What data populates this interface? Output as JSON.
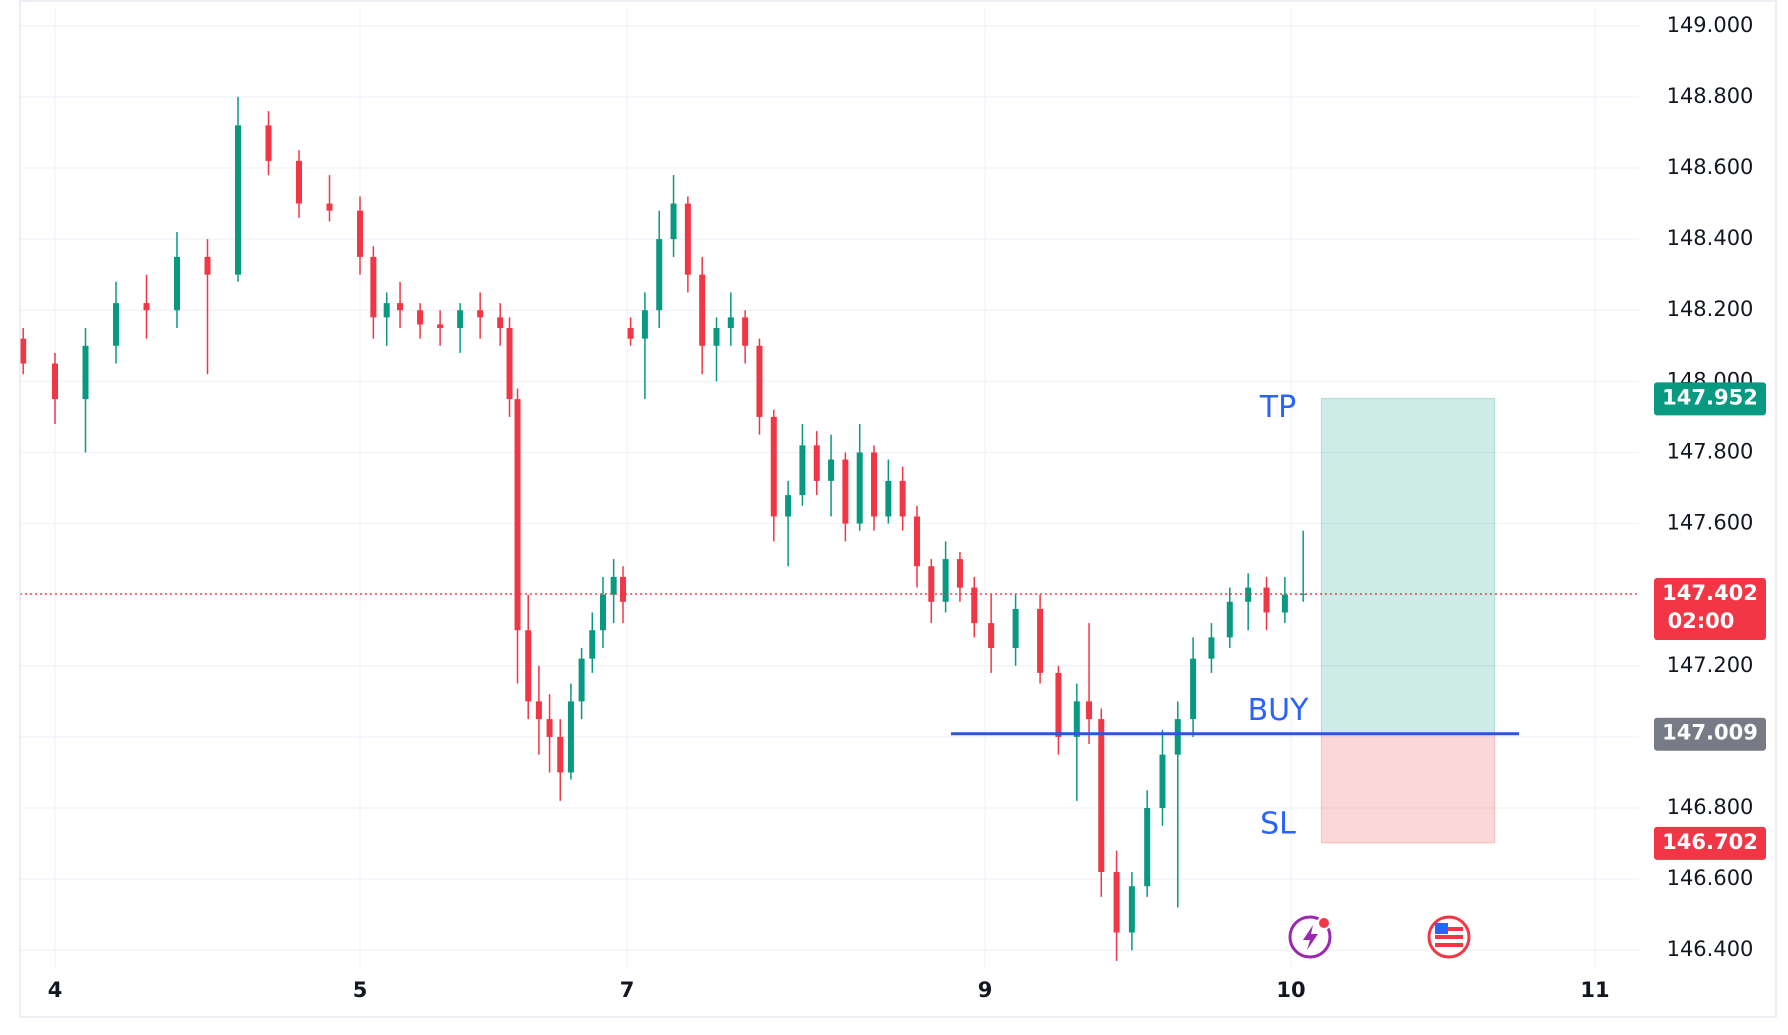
{
  "chart_data": {
    "type": "candlestick",
    "x": [
      3.9,
      4.0,
      4.1,
      4.2,
      4.3,
      4.4,
      4.5,
      4.6,
      4.7,
      4.8,
      4.9,
      5.0,
      5.1,
      5.2,
      5.3,
      5.45,
      5.6,
      5.75,
      5.9,
      6.05,
      6.12,
      6.18,
      6.26,
      6.34,
      6.42,
      6.5,
      6.58,
      6.66,
      6.74,
      6.82,
      6.9,
      6.97,
      7.02,
      7.1,
      7.18,
      7.26,
      7.34,
      7.42,
      7.5,
      7.58,
      7.66,
      7.74,
      7.82,
      7.9,
      7.98,
      8.06,
      8.14,
      8.22,
      8.3,
      8.38,
      8.46,
      8.54,
      8.62,
      8.7,
      8.78,
      8.86,
      8.94,
      9.02,
      9.1,
      9.18,
      9.24,
      9.3,
      9.34,
      9.38,
      9.43,
      9.48,
      9.53,
      9.58,
      9.63,
      9.68,
      9.74,
      9.8,
      9.86,
      9.92,
      9.98,
      10.04
    ],
    "open": [
      148.12,
      148.05,
      147.95,
      148.1,
      148.22,
      148.2,
      148.35,
      148.3,
      148.72,
      148.62,
      148.5,
      148.48,
      148.35,
      148.18,
      148.22,
      148.2,
      148.16,
      148.15,
      148.2,
      148.18,
      148.15,
      147.95,
      147.3,
      147.1,
      147.05,
      147.0,
      146.9,
      147.1,
      147.22,
      147.3,
      147.4,
      147.45,
      148.15,
      148.12,
      148.2,
      148.4,
      148.5,
      148.3,
      148.1,
      148.15,
      148.18,
      148.1,
      147.9,
      147.62,
      147.68,
      147.82,
      147.72,
      147.78,
      147.6,
      147.8,
      147.62,
      147.72,
      147.62,
      147.48,
      147.38,
      147.5,
      147.42,
      147.32,
      147.25,
      147.36,
      147.18,
      147.0,
      147.1,
      147.05,
      146.62,
      146.45,
      146.58,
      146.8,
      146.95,
      147.05,
      147.22,
      147.28,
      147.38,
      147.42,
      147.35,
      147.4
    ],
    "high": [
      148.15,
      148.08,
      148.15,
      148.28,
      148.3,
      148.42,
      148.4,
      148.8,
      148.76,
      148.65,
      148.58,
      148.52,
      148.38,
      148.25,
      148.28,
      148.22,
      148.2,
      148.22,
      148.25,
      148.22,
      148.18,
      147.98,
      147.4,
      147.2,
      147.12,
      147.05,
      147.15,
      147.25,
      147.35,
      147.45,
      147.5,
      147.48,
      148.18,
      148.25,
      148.48,
      148.58,
      148.52,
      148.35,
      148.18,
      148.25,
      148.2,
      148.12,
      147.92,
      147.72,
      147.88,
      147.86,
      147.85,
      147.8,
      147.88,
      147.82,
      147.78,
      147.76,
      147.65,
      147.5,
      147.55,
      147.52,
      147.45,
      147.4,
      147.4,
      147.4,
      147.2,
      147.15,
      147.32,
      147.08,
      146.68,
      146.62,
      146.85,
      147.02,
      147.1,
      147.28,
      147.32,
      147.42,
      147.46,
      147.45,
      147.45,
      147.58
    ],
    "low": [
      148.02,
      147.88,
      147.8,
      148.05,
      148.12,
      148.15,
      148.02,
      148.28,
      148.58,
      148.46,
      148.45,
      148.3,
      148.12,
      148.1,
      148.15,
      148.12,
      148.1,
      148.08,
      148.12,
      148.1,
      147.9,
      147.15,
      147.05,
      146.95,
      146.9,
      146.82,
      146.88,
      147.05,
      147.18,
      147.25,
      147.32,
      147.32,
      148.1,
      147.95,
      148.15,
      148.35,
      148.25,
      148.02,
      148.0,
      148.1,
      148.05,
      147.85,
      147.55,
      147.48,
      147.65,
      147.68,
      147.62,
      147.55,
      147.58,
      147.58,
      147.6,
      147.58,
      147.42,
      147.32,
      147.35,
      147.38,
      147.28,
      147.18,
      147.2,
      147.15,
      146.95,
      146.82,
      146.98,
      146.55,
      146.37,
      146.4,
      146.55,
      146.75,
      146.52,
      147.0,
      147.18,
      147.25,
      147.3,
      147.3,
      147.32,
      147.38
    ],
    "close": [
      148.05,
      147.95,
      148.1,
      148.22,
      148.2,
      148.35,
      148.3,
      148.72,
      148.62,
      148.5,
      148.48,
      148.35,
      148.18,
      148.22,
      148.2,
      148.16,
      148.15,
      148.2,
      148.18,
      148.15,
      147.95,
      147.3,
      147.1,
      147.05,
      147.0,
      146.9,
      147.1,
      147.22,
      147.3,
      147.4,
      147.45,
      147.38,
      148.12,
      148.2,
      148.4,
      148.5,
      148.3,
      148.1,
      148.15,
      148.18,
      148.1,
      147.9,
      147.62,
      147.68,
      147.82,
      147.72,
      147.78,
      147.6,
      147.8,
      147.62,
      147.72,
      147.62,
      147.48,
      147.38,
      147.5,
      147.42,
      147.32,
      147.25,
      147.36,
      147.18,
      147.0,
      147.1,
      147.05,
      146.62,
      146.45,
      146.58,
      146.8,
      146.95,
      147.05,
      147.22,
      147.28,
      147.38,
      147.42,
      147.35,
      147.4,
      147.402
    ],
    "up_color": "#089981",
    "down_color": "#f23645",
    "xlim": [
      3.89,
      11.14
    ],
    "xticks": [
      4,
      5,
      7,
      9,
      10,
      11
    ],
    "ylim": [
      146.35,
      149.05
    ],
    "yticks": [
      {
        "value": 146.4,
        "label": "146.400"
      },
      {
        "value": 146.6,
        "label": "146.600"
      },
      {
        "value": 146.8,
        "label": "146.800"
      },
      {
        "value": 147.0,
        "label": "147.000"
      },
      {
        "value": 147.2,
        "label": "147.200"
      },
      {
        "value": 147.4,
        "label": "147.400"
      },
      {
        "value": 147.6,
        "label": "147.600"
      },
      {
        "value": 147.8,
        "label": "147.800"
      },
      {
        "value": 148.0,
        "label": "148.000"
      },
      {
        "value": 148.2,
        "label": "148.200"
      },
      {
        "value": 148.4,
        "label": "148.400"
      },
      {
        "value": 148.6,
        "label": "148.600"
      },
      {
        "value": 148.8,
        "label": "148.800"
      },
      {
        "value": 149.0,
        "label": "149.000"
      }
    ],
    "grid": true,
    "last_price": 147.402,
    "countdown": "02:00",
    "position": {
      "tp_label": "TP",
      "buy_label": "BUY",
      "sl_label": "SL",
      "take_profit": 147.952,
      "entry": 147.009,
      "stop_loss": 146.702,
      "start": 10.1,
      "end": 10.67,
      "line_start": 8.81,
      "line_end": 10.75
    }
  }
}
